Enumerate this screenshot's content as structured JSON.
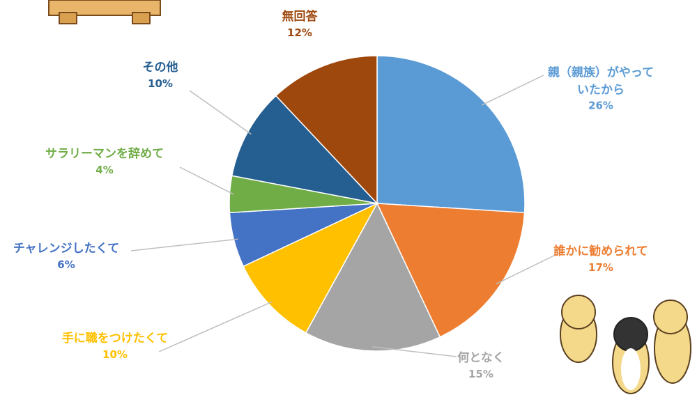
{
  "chart_data": {
    "type": "pie",
    "categories": [
      "親（親族）がやっていたから",
      "誰かに勧められて",
      "何となく",
      "手に職をつけたくて",
      "チャレンジしたくて",
      "サラリーマンを辞めて",
      "その他",
      "無回答"
    ],
    "values": [
      26,
      17,
      15,
      10,
      6,
      4,
      10,
      12
    ],
    "value_labels": [
      "26%",
      "17%",
      "15%",
      "10%",
      "6%",
      "4%",
      "10%",
      "12%"
    ],
    "colors": [
      "#5b9bd5",
      "#ed7d31",
      "#a5a5a5",
      "#ffc000",
      "#4472c4",
      "#70ad47",
      "#255e91",
      "#9e480e"
    ]
  }
}
